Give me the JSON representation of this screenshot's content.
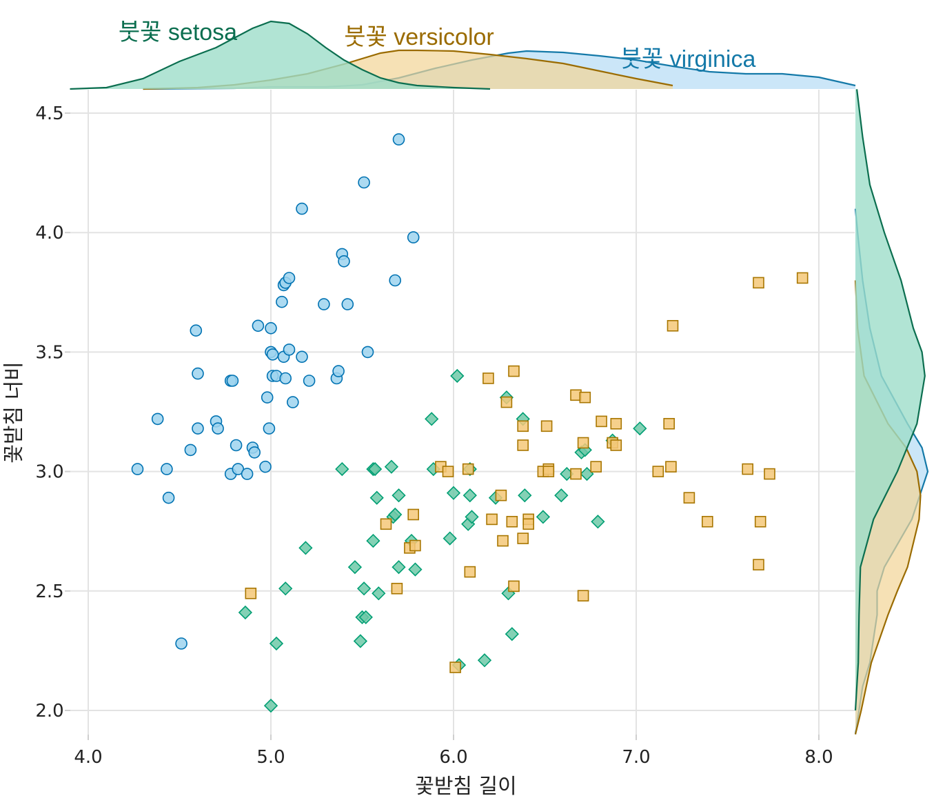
{
  "chart_data": {
    "type": "scatter",
    "xlabel": "꽃받침 길이",
    "ylabel": "꽃받침 너비",
    "xlim": [
      3.9,
      8.2
    ],
    "ylim": [
      1.9,
      4.6
    ],
    "x_ticks": [
      4.0,
      5.0,
      6.0,
      7.0,
      8.0
    ],
    "x_tick_labels": [
      "4.0",
      "5.0",
      "6.0",
      "7.0",
      "8.0"
    ],
    "y_ticks": [
      2.0,
      2.5,
      3.0,
      3.5,
      4.0,
      4.5
    ],
    "y_tick_labels": [
      "2.0",
      "2.5",
      "3.0",
      "3.5",
      "4.0",
      "4.5"
    ],
    "grid": true,
    "marginal": "density (top for x, right for y)",
    "series": [
      {
        "name": "붓꽃 setosa",
        "marker": "circle",
        "color": "#0072B2",
        "fill": "#9ED3EF",
        "points": [
          [
            4.27,
            3.01
          ],
          [
            4.38,
            3.22
          ],
          [
            4.43,
            3.01
          ],
          [
            4.44,
            2.89
          ],
          [
            4.51,
            2.28
          ],
          [
            4.56,
            3.09
          ],
          [
            4.59,
            3.59
          ],
          [
            4.6,
            3.41
          ],
          [
            4.6,
            3.18
          ],
          [
            4.7,
            3.21
          ],
          [
            4.71,
            3.18
          ],
          [
            4.78,
            3.38
          ],
          [
            4.79,
            3.38
          ],
          [
            4.78,
            2.99
          ],
          [
            4.81,
            3.11
          ],
          [
            4.82,
            3.01
          ],
          [
            4.87,
            2.99
          ],
          [
            4.9,
            3.1
          ],
          [
            4.91,
            3.08
          ],
          [
            4.93,
            3.61
          ],
          [
            4.97,
            3.02
          ],
          [
            4.98,
            3.31
          ],
          [
            4.99,
            3.18
          ],
          [
            5.0,
            3.5
          ],
          [
            5.0,
            3.6
          ],
          [
            5.01,
            3.49
          ],
          [
            5.01,
            3.4
          ],
          [
            5.03,
            3.4
          ],
          [
            5.06,
            3.71
          ],
          [
            5.07,
            3.48
          ],
          [
            5.07,
            3.78
          ],
          [
            5.08,
            3.79
          ],
          [
            5.08,
            3.39
          ],
          [
            5.1,
            3.81
          ],
          [
            5.1,
            3.51
          ],
          [
            5.12,
            3.29
          ],
          [
            5.17,
            4.1
          ],
          [
            5.17,
            3.48
          ],
          [
            5.21,
            3.38
          ],
          [
            5.29,
            3.7
          ],
          [
            5.36,
            3.39
          ],
          [
            5.37,
            3.42
          ],
          [
            5.39,
            3.91
          ],
          [
            5.4,
            3.88
          ],
          [
            5.42,
            3.7
          ],
          [
            5.51,
            4.21
          ],
          [
            5.53,
            3.5
          ],
          [
            5.68,
            3.8
          ],
          [
            5.7,
            4.39
          ],
          [
            5.78,
            3.98
          ]
        ]
      },
      {
        "name": "붓꽃 versicolor",
        "marker": "diamond",
        "color": "#009E73",
        "fill": "#6FC9A8",
        "points": [
          [
            4.86,
            2.41
          ],
          [
            5.0,
            2.02
          ],
          [
            5.03,
            2.28
          ],
          [
            5.08,
            2.51
          ],
          [
            5.19,
            2.68
          ],
          [
            5.39,
            3.01
          ],
          [
            5.46,
            2.6
          ],
          [
            5.49,
            2.29
          ],
          [
            5.5,
            2.39
          ],
          [
            5.51,
            2.51
          ],
          [
            5.52,
            2.39
          ],
          [
            5.56,
            2.71
          ],
          [
            5.56,
            3.01
          ],
          [
            5.57,
            3.01
          ],
          [
            5.58,
            2.89
          ],
          [
            5.59,
            2.49
          ],
          [
            5.66,
            3.02
          ],
          [
            5.67,
            2.81
          ],
          [
            5.68,
            2.82
          ],
          [
            5.7,
            2.9
          ],
          [
            5.7,
            2.6
          ],
          [
            5.77,
            2.71
          ],
          [
            5.79,
            2.59
          ],
          [
            5.88,
            3.22
          ],
          [
            5.89,
            3.01
          ],
          [
            5.98,
            2.72
          ],
          [
            6.0,
            2.91
          ],
          [
            6.02,
            3.4
          ],
          [
            6.03,
            2.19
          ],
          [
            6.08,
            2.78
          ],
          [
            6.09,
            2.9
          ],
          [
            6.09,
            3.01
          ],
          [
            6.1,
            2.81
          ],
          [
            6.17,
            2.21
          ],
          [
            6.23,
            2.89
          ],
          [
            6.29,
            3.31
          ],
          [
            6.3,
            2.49
          ],
          [
            6.32,
            2.32
          ],
          [
            6.38,
            3.22
          ],
          [
            6.39,
            2.9
          ],
          [
            6.49,
            2.81
          ],
          [
            6.59,
            2.9
          ],
          [
            6.62,
            2.99
          ],
          [
            6.7,
            3.08
          ],
          [
            6.72,
            3.09
          ],
          [
            6.73,
            2.99
          ],
          [
            6.79,
            2.79
          ],
          [
            6.87,
            3.13
          ],
          [
            7.02,
            3.18
          ]
        ]
      },
      {
        "name": "붓꽃 virginica",
        "marker": "square",
        "color": "#A87600",
        "fill": "#F4C878",
        "points": [
          [
            4.89,
            2.49
          ],
          [
            5.63,
            2.78
          ],
          [
            5.69,
            2.51
          ],
          [
            5.76,
            2.68
          ],
          [
            5.78,
            2.82
          ],
          [
            5.79,
            2.69
          ],
          [
            5.93,
            3.02
          ],
          [
            5.97,
            3.0
          ],
          [
            6.01,
            2.18
          ],
          [
            6.08,
            3.01
          ],
          [
            6.09,
            2.58
          ],
          [
            6.19,
            3.39
          ],
          [
            6.21,
            2.8
          ],
          [
            6.26,
            2.9
          ],
          [
            6.27,
            2.71
          ],
          [
            6.29,
            3.29
          ],
          [
            6.32,
            2.79
          ],
          [
            6.33,
            3.42
          ],
          [
            6.33,
            2.52
          ],
          [
            6.38,
            2.72
          ],
          [
            6.38,
            3.11
          ],
          [
            6.38,
            3.19
          ],
          [
            6.41,
            2.8
          ],
          [
            6.41,
            2.78
          ],
          [
            6.49,
            3.0
          ],
          [
            6.51,
            3.19
          ],
          [
            6.52,
            3.01
          ],
          [
            6.52,
            3.0
          ],
          [
            6.67,
            3.32
          ],
          [
            6.67,
            2.99
          ],
          [
            6.71,
            3.12
          ],
          [
            6.71,
            2.48
          ],
          [
            6.72,
            3.31
          ],
          [
            6.78,
            3.02
          ],
          [
            6.81,
            3.21
          ],
          [
            6.87,
            3.12
          ],
          [
            6.89,
            3.2
          ],
          [
            6.89,
            3.11
          ],
          [
            7.12,
            3.0
          ],
          [
            7.18,
            3.2
          ],
          [
            7.19,
            3.02
          ],
          [
            7.2,
            3.61
          ],
          [
            7.29,
            2.89
          ],
          [
            7.39,
            2.79
          ],
          [
            7.61,
            3.01
          ],
          [
            7.67,
            3.79
          ],
          [
            7.67,
            2.61
          ],
          [
            7.68,
            2.79
          ],
          [
            7.73,
            2.99
          ],
          [
            7.91,
            3.81
          ]
        ]
      }
    ],
    "density_x": [
      {
        "name": "붓꽃 setosa",
        "x": [
          3.9,
          4.1,
          4.3,
          4.5,
          4.7,
          4.9,
          5.0,
          5.1,
          5.2,
          5.3,
          5.4,
          5.5,
          5.6,
          5.7,
          5.8,
          6.0,
          6.2
        ],
        "d": [
          0.0,
          0.02,
          0.15,
          0.4,
          0.6,
          0.88,
          0.98,
          0.95,
          0.8,
          0.6,
          0.42,
          0.28,
          0.16,
          0.09,
          0.05,
          0.02,
          0.0
        ]
      },
      {
        "name": "붓꽃 versicolor",
        "x": [
          4.3,
          4.6,
          4.8,
          5.0,
          5.2,
          5.4,
          5.6,
          5.7,
          5.8,
          6.0,
          6.2,
          6.4,
          6.6,
          6.8,
          7.0,
          7.2
        ],
        "d": [
          0.0,
          0.02,
          0.06,
          0.13,
          0.22,
          0.36,
          0.52,
          0.56,
          0.56,
          0.55,
          0.5,
          0.44,
          0.37,
          0.26,
          0.15,
          0.05
        ]
      },
      {
        "name": "붓꽃 virginica",
        "x": [
          4.3,
          4.8,
          5.0,
          5.3,
          5.5,
          5.7,
          5.9,
          6.1,
          6.3,
          6.4,
          6.6,
          6.8,
          7.0,
          7.2,
          7.4,
          7.6,
          7.8,
          8.0,
          8.2
        ],
        "d": [
          0.0,
          0.01,
          0.03,
          0.03,
          0.06,
          0.16,
          0.3,
          0.42,
          0.52,
          0.55,
          0.53,
          0.48,
          0.42,
          0.33,
          0.25,
          0.22,
          0.22,
          0.17,
          0.05
        ]
      }
    ],
    "density_y": [
      {
        "name": "붓꽃 setosa",
        "y": [
          2.0,
          2.2,
          2.4,
          2.6,
          2.8,
          3.0,
          3.2,
          3.4,
          3.5,
          3.6,
          3.8,
          4.0,
          4.2,
          4.4,
          4.6
        ],
        "d": [
          0.0,
          0.04,
          0.05,
          0.07,
          0.25,
          0.58,
          0.85,
          0.96,
          0.92,
          0.8,
          0.63,
          0.4,
          0.2,
          0.1,
          0.02
        ]
      },
      {
        "name": "붓꽃 versicolor",
        "y": [
          1.9,
          2.0,
          2.2,
          2.4,
          2.5,
          2.6,
          2.8,
          2.9,
          3.0,
          3.1,
          3.2,
          3.4,
          3.6,
          3.8
        ],
        "d": [
          0.0,
          0.08,
          0.22,
          0.45,
          0.58,
          0.72,
          0.88,
          0.9,
          0.85,
          0.7,
          0.45,
          0.12,
          0.03,
          0.0
        ]
      },
      {
        "name": "붓꽃 virginica",
        "y": [
          1.9,
          2.1,
          2.2,
          2.4,
          2.5,
          2.6,
          2.8,
          3.0,
          3.1,
          3.2,
          3.4,
          3.6,
          3.8,
          4.0,
          4.1
        ],
        "d": [
          0.0,
          0.1,
          0.2,
          0.3,
          0.3,
          0.4,
          0.78,
          1.0,
          0.92,
          0.72,
          0.36,
          0.2,
          0.1,
          0.03,
          0.0
        ]
      }
    ]
  }
}
